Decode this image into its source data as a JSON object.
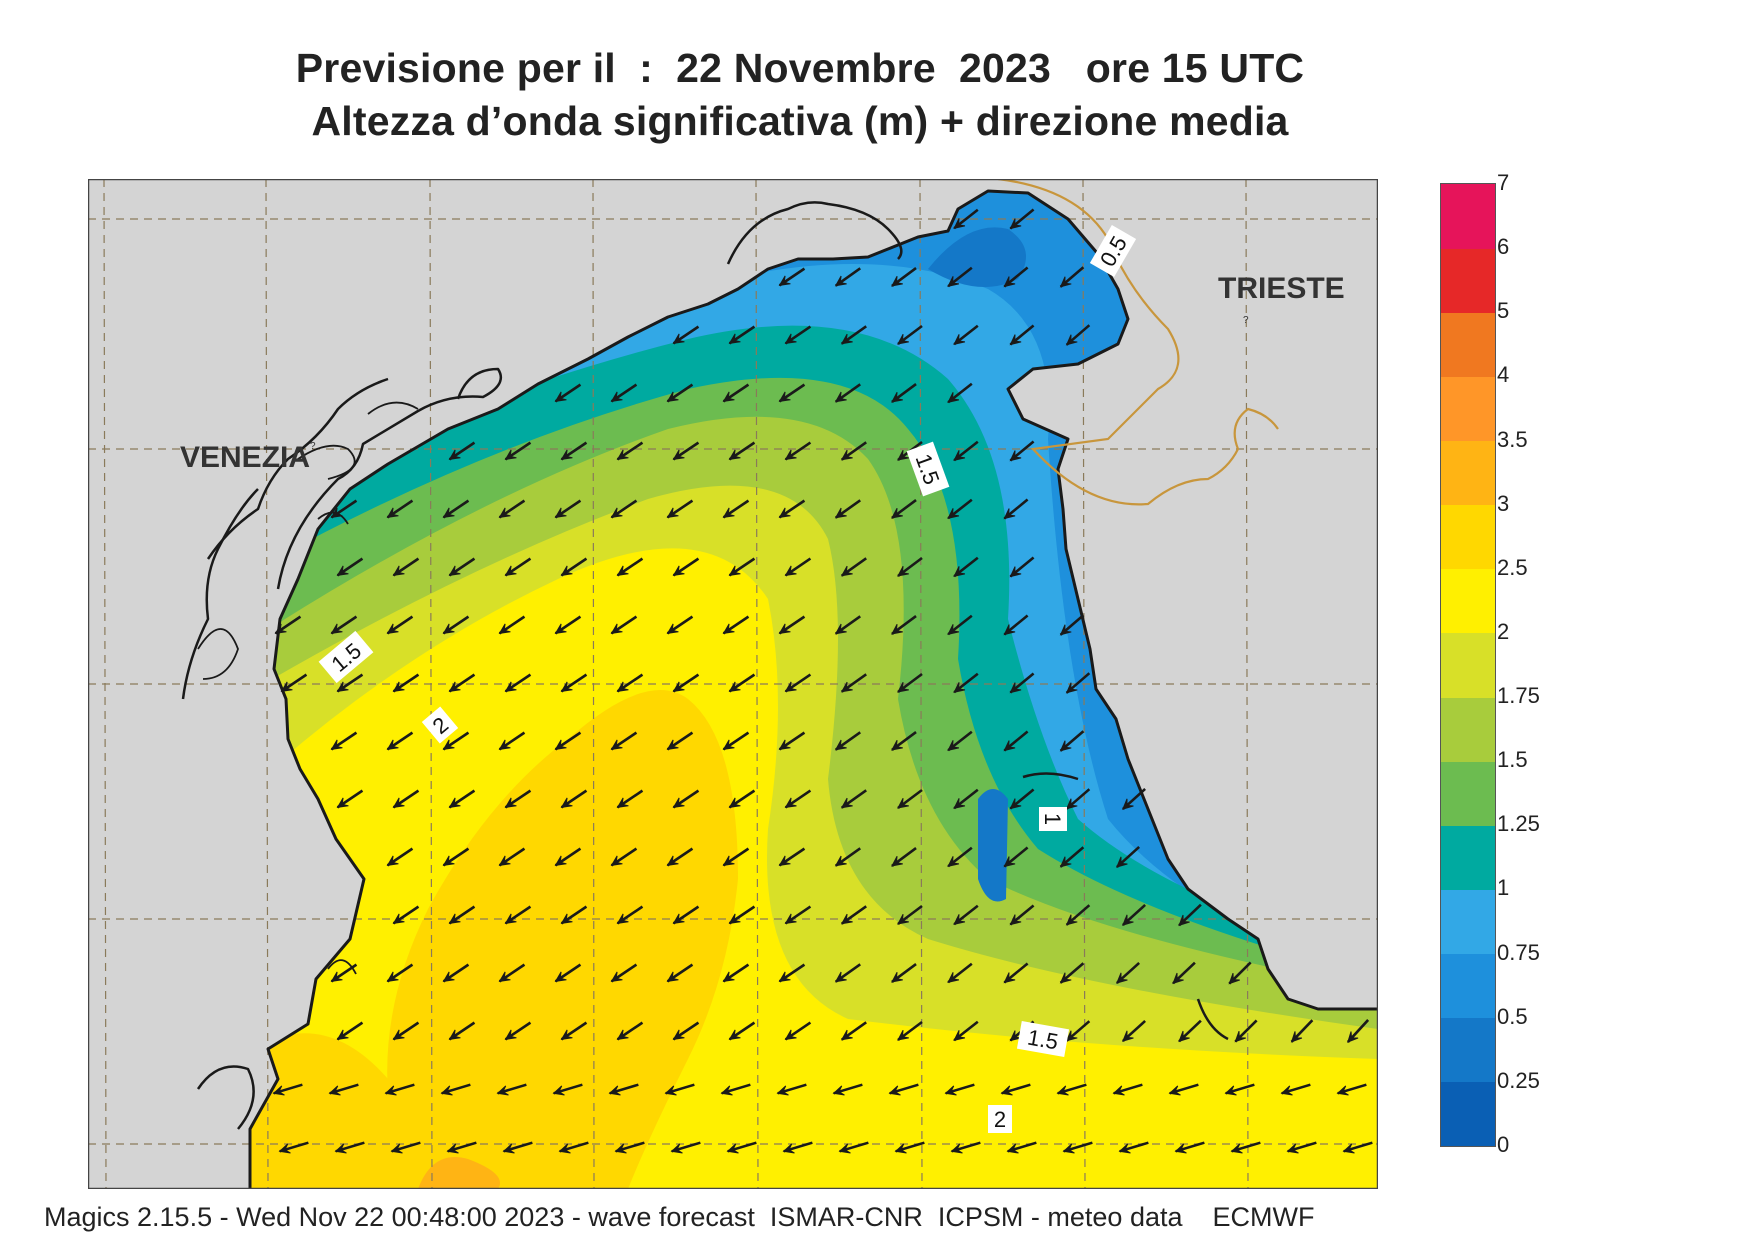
{
  "title": {
    "line1": "Previsione per il  :  22 Novembre  2023   ore 15 UTC",
    "line2": "Altezza d’onda significativa (m) + direzione media"
  },
  "map": {
    "cities": [
      {
        "name": "VENEZIA"
      },
      {
        "name": "TRIESTE"
      }
    ],
    "contour_labels": [
      "0.5",
      "1.5",
      "1.5",
      "2",
      "1",
      "1.5",
      "2"
    ],
    "arrow_direction": "southwest",
    "land_color": "#d4d4d4",
    "coast_color": "#1a1a1a",
    "border_color": "#c8963c"
  },
  "legend": {
    "unit": "m",
    "levels": [
      "0",
      "0.25",
      "0.5",
      "0.75",
      "1",
      "1.25",
      "1.5",
      "1.75",
      "2",
      "2.5",
      "3",
      "3.5",
      "4",
      "5",
      "6",
      "7"
    ],
    "colors": [
      "#0a5fb4",
      "#1478c8",
      "#1e90dc",
      "#32a8e6",
      "#00aaa0",
      "#6cbc50",
      "#a8cc3c",
      "#d8e028",
      "#fff000",
      "#ffd800",
      "#ffb414",
      "#ff9628",
      "#f07820",
      "#e62828",
      "#e6145a"
    ]
  },
  "footer": {
    "text": "Magics 2.15.5 - Wed Nov 22 00:48:00 2023 - wave forecast  ISMAR-CNR  ICPSM - meteo data    ECMWF"
  }
}
